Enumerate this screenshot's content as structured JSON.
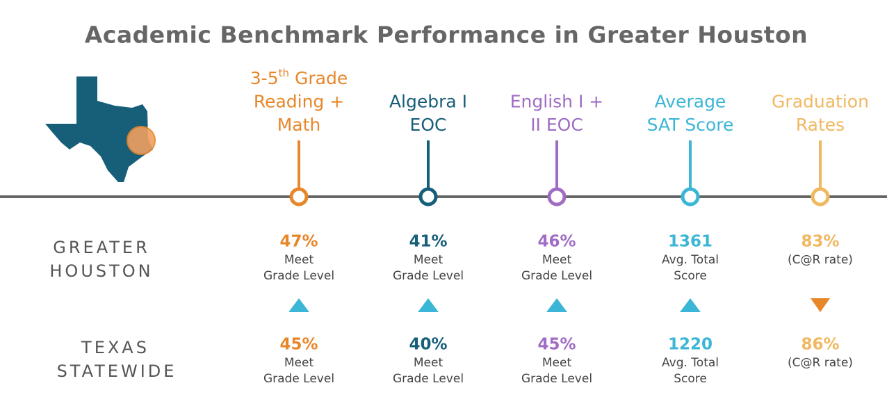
{
  "header": {
    "title": "Academic Benchmark Performance in Greater Houston"
  },
  "rows": {
    "houston": [
      "GREATER",
      "HOUSTON"
    ],
    "texas": [
      "TEXAS",
      "STATEWIDE"
    ]
  },
  "columns": [
    {
      "color": "#e8862a",
      "heading_prefix": "3-5",
      "heading_sup": "th",
      "heading_lines": [
        "Grade",
        "Reading +",
        "Math"
      ],
      "trend": "up",
      "houston": {
        "value": "47%",
        "label": [
          "Meet",
          "Grade Level"
        ]
      },
      "texas": {
        "value": "45%",
        "label": [
          "Meet",
          "Grade Level"
        ]
      }
    },
    {
      "color": "#175e79",
      "heading_lines": [
        "Algebra I",
        "EOC"
      ],
      "trend": "up",
      "houston": {
        "value": "41%",
        "label": [
          "Meet",
          "Grade Level"
        ]
      },
      "texas": {
        "value": "40%",
        "label": [
          "Meet",
          "Grade Level"
        ]
      }
    },
    {
      "color": "#a06cc4",
      "heading_lines": [
        "English I +",
        "II EOC"
      ],
      "trend": "up",
      "houston": {
        "value": "46%",
        "label": [
          "Meet",
          "Grade Level"
        ]
      },
      "texas": {
        "value": "45%",
        "label": [
          "Meet",
          "Grade Level"
        ]
      }
    },
    {
      "color": "#3bb6d6",
      "heading_lines": [
        "Average",
        "SAT Score"
      ],
      "trend": "up",
      "houston": {
        "value": "1361",
        "label": [
          "Avg. Total",
          "Score"
        ]
      },
      "texas": {
        "value": "1220",
        "label": [
          "Avg. Total",
          "Score"
        ]
      }
    },
    {
      "color": "#f0b860",
      "heading_lines": [
        "Graduation",
        "Rates"
      ],
      "trend": "down",
      "houston": {
        "value": "83%",
        "label": [
          "(C@R rate)"
        ]
      },
      "texas": {
        "value": "86%",
        "label": [
          "(C@R rate)"
        ]
      }
    }
  ]
}
